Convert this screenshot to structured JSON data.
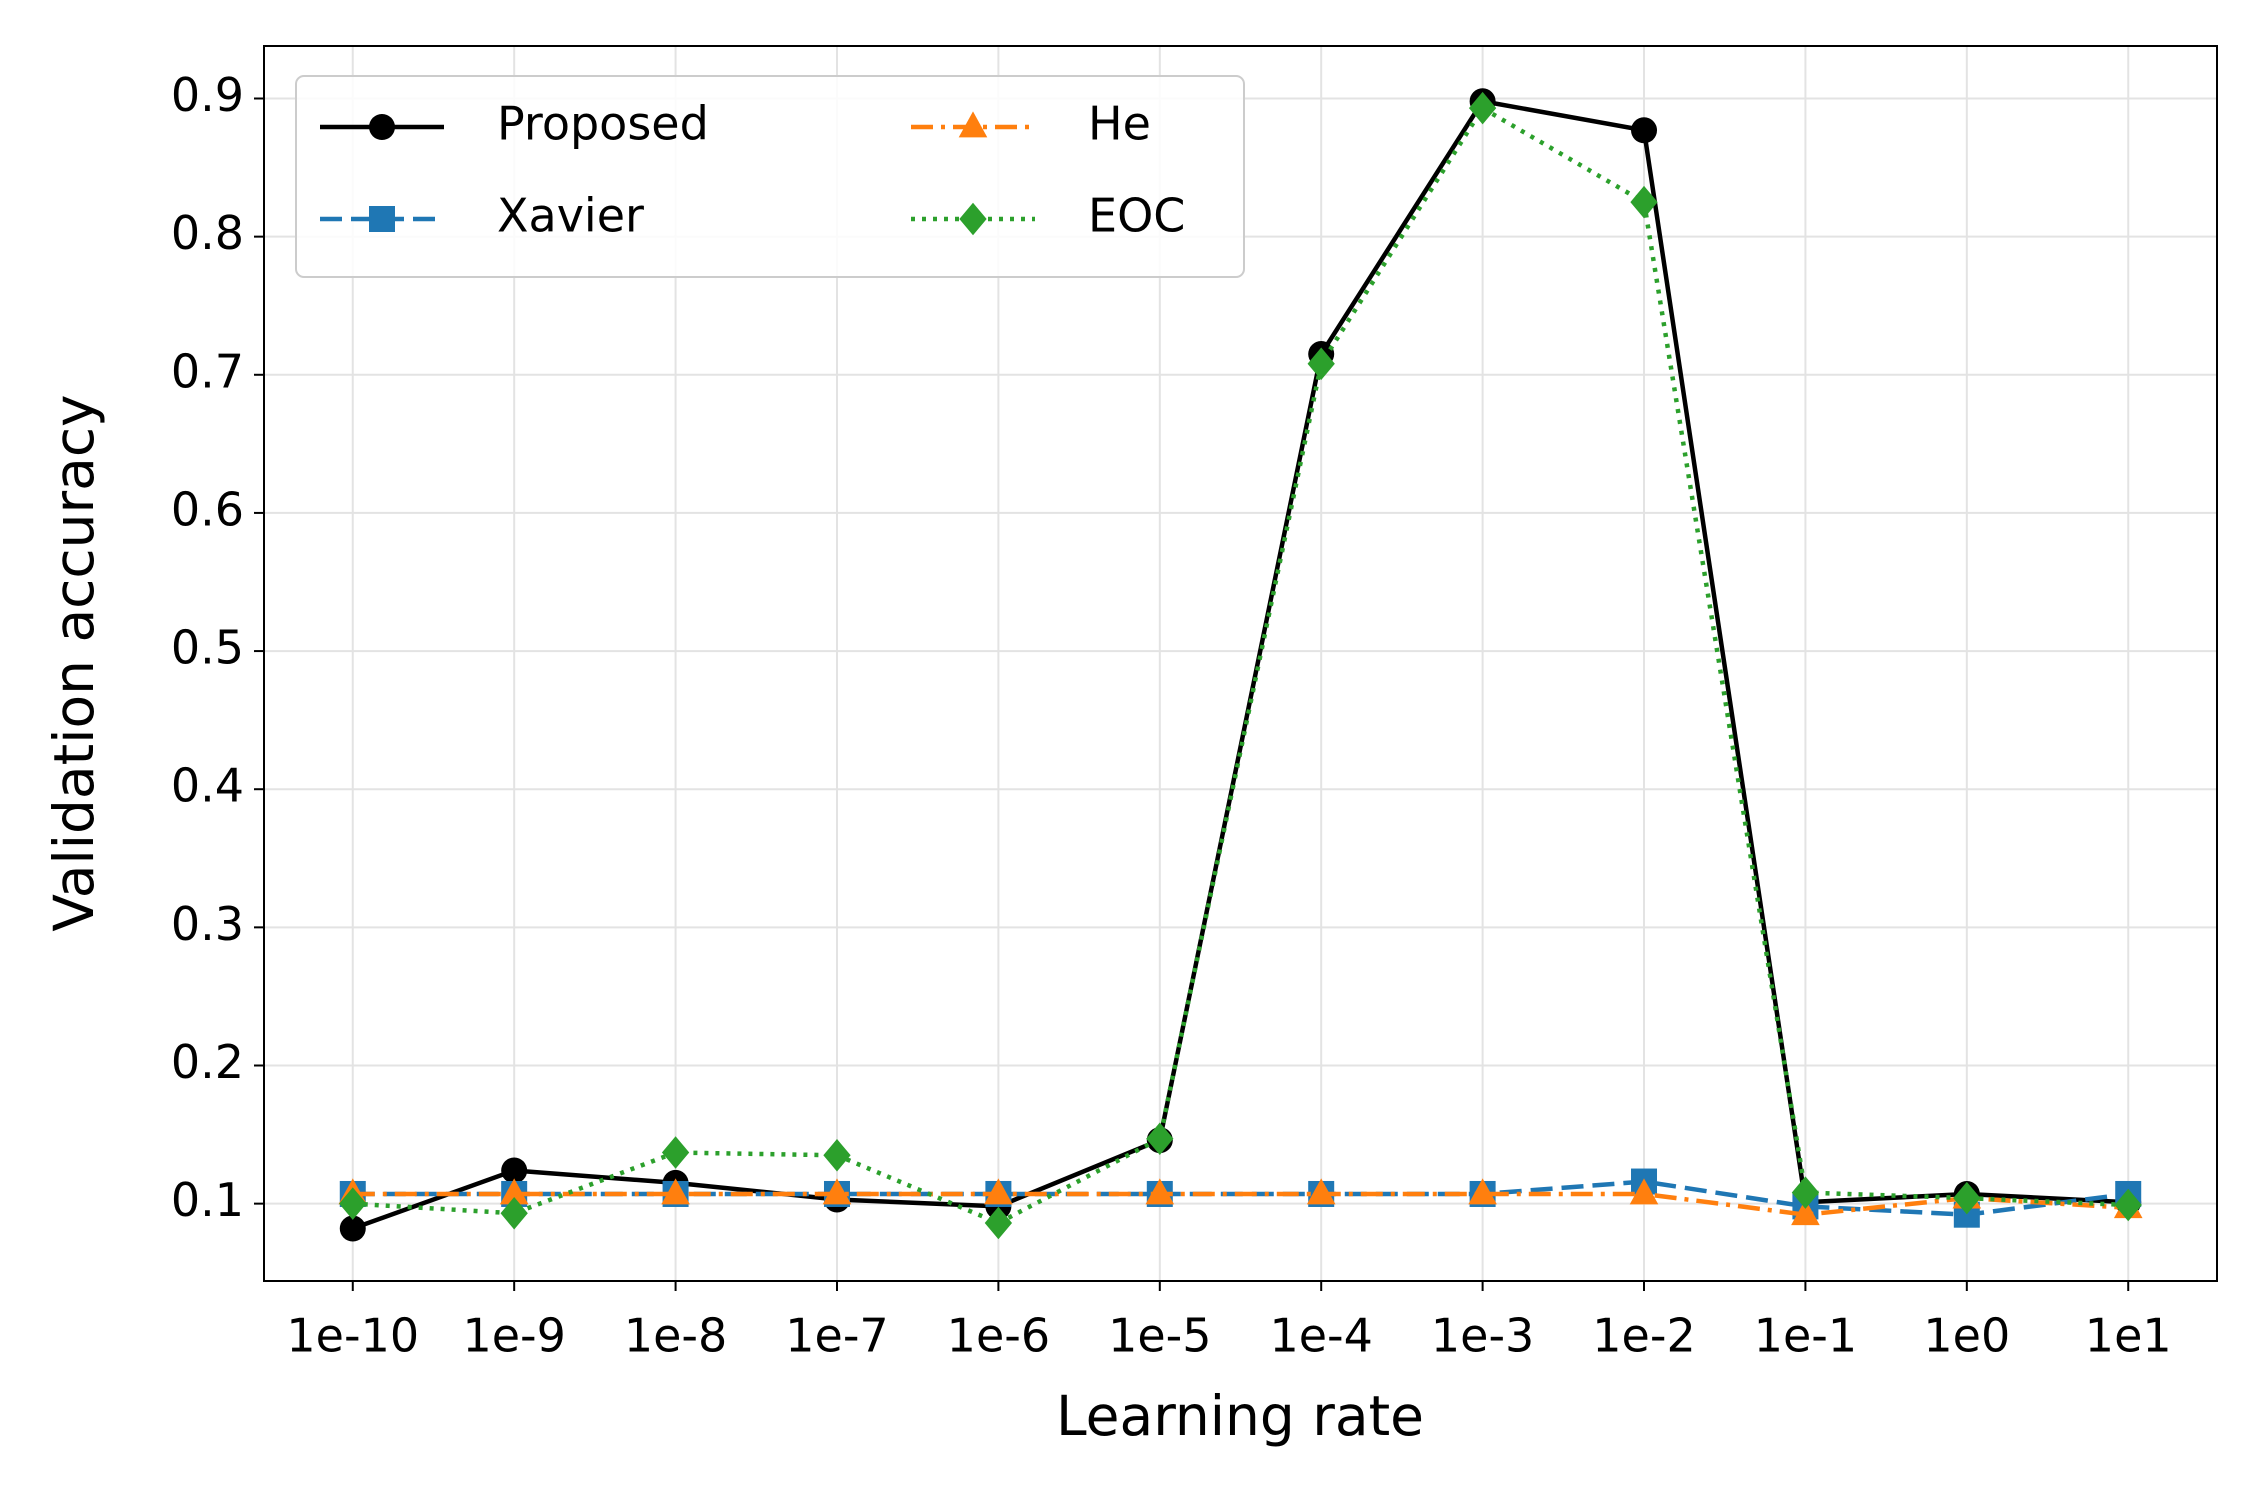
{
  "chart_data": {
    "type": "line",
    "x_label": "Learning rate",
    "y_label": "Validation accuracy",
    "categories": [
      "1e-10",
      "1e-9",
      "1e-8",
      "1e-7",
      "1e-6",
      "1e-5",
      "1e-4",
      "1e-3",
      "1e-2",
      "1e-1",
      "1e0",
      "1e1"
    ],
    "series": [
      {
        "name": "Proposed",
        "color": "#000000",
        "marker": "circle",
        "linestyle": "solid",
        "values": [
          0.082,
          0.124,
          0.115,
          0.103,
          0.098,
          0.146,
          0.715,
          0.898,
          0.877,
          0.101,
          0.107,
          0.101
        ]
      },
      {
        "name": "Xavier",
        "color": "#1f77b4",
        "marker": "square",
        "linestyle": "dashed",
        "values": [
          0.107,
          0.107,
          0.107,
          0.107,
          0.107,
          0.107,
          0.107,
          0.107,
          0.116,
          0.098,
          0.092,
          0.107
        ]
      },
      {
        "name": "He",
        "color": "#ff7f0e",
        "marker": "triangle",
        "linestyle": "dashdot",
        "values": [
          0.107,
          0.107,
          0.107,
          0.107,
          0.107,
          0.107,
          0.107,
          0.107,
          0.107,
          0.092,
          0.104,
          0.097
        ]
      },
      {
        "name": "EOC",
        "color": "#2ca02c",
        "marker": "diamond",
        "linestyle": "dotted",
        "values": [
          0.1,
          0.093,
          0.137,
          0.135,
          0.086,
          0.147,
          0.708,
          0.893,
          0.825,
          0.108,
          0.104,
          0.099
        ]
      }
    ],
    "ylim": [
      0.044,
      0.938
    ],
    "yticks": [
      0.1,
      0.2,
      0.3,
      0.4,
      0.5,
      0.6,
      0.7,
      0.8,
      0.9
    ],
    "grid": true,
    "legend_position": "upper-left",
    "legend_columns": 2
  }
}
